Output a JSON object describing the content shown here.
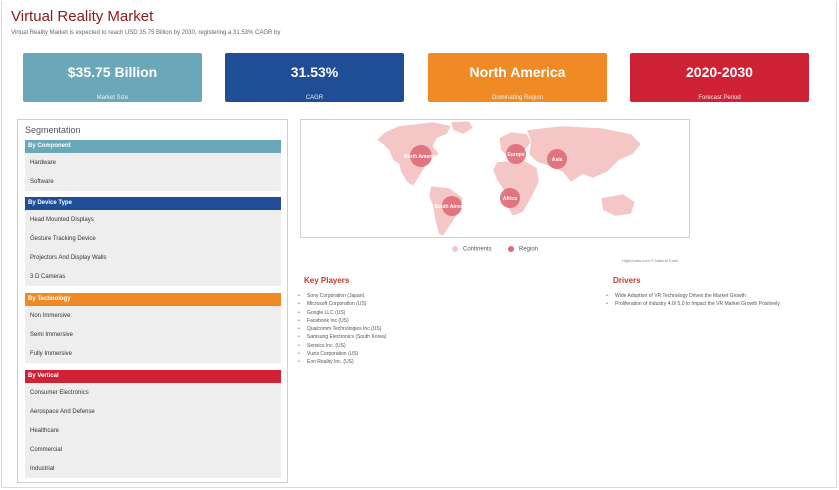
{
  "header": {
    "title": "Virtual Reality Market",
    "subtitle": "Virtual Reality Market is expected to reach USD 35.75 Billion by 2030, registering a 31.53% CAGR by"
  },
  "cards": [
    {
      "value": "$35.75 Billion",
      "label": "Market Size",
      "color": "#6aa7b8"
    },
    {
      "value": "31.53%",
      "label": "CAGR",
      "color": "#1f4e96"
    },
    {
      "value": "North America",
      "label": "Dominating Region",
      "color": "#f08a24"
    },
    {
      "value": "2020-2030",
      "label": "Forecast Period",
      "color": "#cf2236"
    }
  ],
  "segmentation": {
    "title": "Segmentation",
    "categories": [
      {
        "name": "By Component",
        "color": "#6aa7b8",
        "items": [
          "Hardware",
          "Software"
        ]
      },
      {
        "name": "By Device Type",
        "color": "#1f4e96",
        "items": [
          "Head Mounted Displays",
          "Gesture Tracking Device",
          "Projectors And Display Walls",
          "3 D Cameras"
        ]
      },
      {
        "name": "By Technology",
        "color": "#f08a24",
        "items": [
          "Non Immersive",
          "Semi Immersive",
          "Fully Immersive"
        ]
      },
      {
        "name": "By Vertical",
        "color": "#cf2236",
        "items": [
          "Consumer Electronics",
          "Aerospace And Defense",
          "Healthcare",
          "Commercial",
          "Industrial"
        ]
      }
    ]
  },
  "map": {
    "regions": [
      "North America",
      "Europe",
      "Asia",
      "South America",
      "Africa"
    ],
    "legend": {
      "continents": "Continents",
      "region": "Region"
    },
    "continent_color": "#f4c6c6",
    "region_color": "#e06a78",
    "credit": "Highcharts.com © Natural Earth"
  },
  "key_players": {
    "title": "Key Players",
    "items": [
      "Sony Corporation (Japan)",
      "Microsoft Corporation (US)",
      "Google LLC (US)",
      "Facebook Inc (US)",
      "Qualcomm Technologies Inc.(US)",
      "Samsung Electronics (South Korea)",
      "Sensics Inc. (US)",
      "Vuzix Corporation (US)",
      "Eon Reality Inc. (US)"
    ]
  },
  "drivers": {
    "title": "Drivers",
    "items": [
      "Wide Adoption of VR Technology Drives the Market Growth",
      "Proliferation of Industry 4.0/ 5.0 to Impact the VR Market Growth Positively"
    ]
  }
}
